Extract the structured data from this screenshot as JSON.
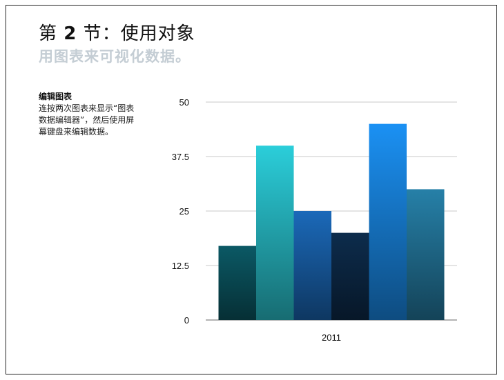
{
  "slide": {
    "title_prefix": "第 ",
    "title_number": "2",
    "title_suffix": " 节：使用对象",
    "subtitle": "用图表来可视化数据。"
  },
  "sidebar": {
    "heading": "编辑图表",
    "body_lines": [
      "连按两次图表来显示“图表",
      "数据编辑器”，然后使用屏",
      "幕键盘来编辑数据。"
    ]
  },
  "chart_data": {
    "type": "bar",
    "categories": [
      "2011"
    ],
    "series": [
      {
        "values": [
          17
        ],
        "color": "#0a5560"
      },
      {
        "values": [
          40
        ],
        "color": "#29c4d0"
      },
      {
        "values": [
          25
        ],
        "color": "#1a64b0"
      },
      {
        "values": [
          20
        ],
        "color": "#0c2a48"
      },
      {
        "values": [
          45
        ],
        "color": "#1a8ae8"
      },
      {
        "values": [
          30
        ],
        "color": "#247aa0"
      }
    ],
    "ylim": [
      0,
      50
    ],
    "yticks": [
      0,
      12.5,
      25,
      37.5,
      50
    ],
    "ytick_labels": [
      "0",
      "12.5",
      "25",
      "37.5",
      "50"
    ],
    "grid": true,
    "legend": "none"
  }
}
